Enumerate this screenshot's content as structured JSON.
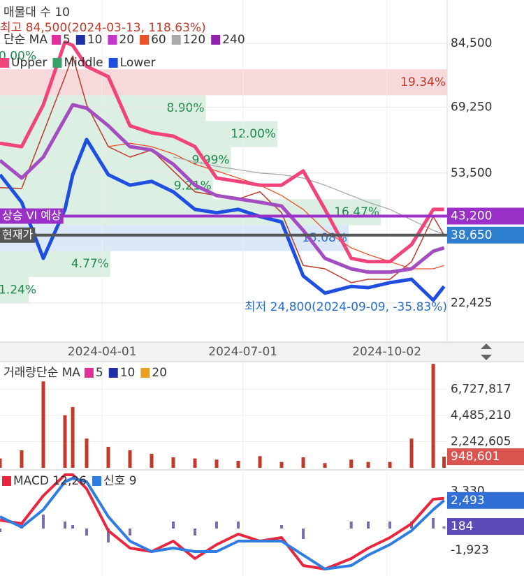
{
  "chart_data": [
    {
      "type": "line",
      "volume_profile_title": "매물대 수 10",
      "high_label": "최고 84,500(2024-03-13, 118.63%)",
      "low_label": "최저 24,800(2024-09-09, -35.83%)",
      "ma_title": "단순 MA",
      "x": [
        "2024-01-26",
        "2024-02-09",
        "2024-02-23",
        "2024-03-08",
        "2024-03-13",
        "2024-03-22",
        "2024-04-05",
        "2024-04-19",
        "2024-05-03",
        "2024-05-17",
        "2024-05-31",
        "2024-06-14",
        "2024-06-28",
        "2024-07-12",
        "2024-07-26",
        "2024-08-09",
        "2024-08-23",
        "2024-09-09",
        "2024-09-20",
        "2024-10-04",
        "2024-10-18",
        "2024-11-01",
        "2024-11-08"
      ],
      "xlim": [
        "2024-01-26",
        "2024-11-10"
      ],
      "xticks": [
        "2024-04-01",
        "2024-07-01",
        "2024-10-02"
      ],
      "ylim": [
        13081,
        94846
      ],
      "yticks": [
        {
          "value": 22425,
          "label": "22,425"
        },
        {
          "value": 53500,
          "label": "53,500"
        },
        {
          "value": 69250,
          "label": "69,250"
        },
        {
          "value": 84500,
          "label": "84,500"
        }
      ],
      "grid": true,
      "close": {
        "color": "#c0392b",
        "values": [
          50000,
          49800,
          63100,
          76500,
          81500,
          69800,
          59800,
          57300,
          59000,
          54000,
          49000,
          48100,
          47300,
          49000,
          44000,
          31400,
          30600,
          27300,
          28100,
          28100,
          32300,
          43100,
          38650
        ]
      },
      "ma_series": [
        {
          "name": "5",
          "color": "#e0309a"
        },
        {
          "name": "10",
          "color": "#1f2fa8"
        },
        {
          "name": "20",
          "color": "#c437c8"
        },
        {
          "name": "60",
          "color": "#e8532b",
          "values": [
            null,
            null,
            null,
            null,
            null,
            null,
            59800,
            60600,
            59800,
            58100,
            55600,
            54000,
            52300,
            50600,
            48100,
            44800,
            39800,
            35600,
            34000,
            32300,
            30600,
            30600,
            31400
          ]
        },
        {
          "name": "120",
          "color": "#aaaaaa",
          "values": [
            null,
            null,
            null,
            null,
            null,
            null,
            null,
            null,
            null,
            57300,
            56200,
            55100,
            54300,
            53500,
            53100,
            52300,
            50600,
            48100,
            46500,
            44800,
            42300,
            39800,
            38900
          ]
        },
        {
          "name": "240",
          "color": "#8e24aa"
        }
      ],
      "bollinger": [
        {
          "name": "Upper",
          "color": "#f0447a",
          "legend_color": "#f0447a",
          "values": [
            60600,
            59800,
            69800,
            84800,
            84000,
            79000,
            76500,
            64800,
            63100,
            62300,
            59800,
            52300,
            51500,
            50600,
            50600,
            54000,
            44800,
            33100,
            32300,
            32300,
            36400,
            44800,
            44800
          ]
        },
        {
          "name": "Middle",
          "color": "#a34dc0",
          "legend_color": "#3aa06a",
          "values": [
            56500,
            52300,
            57300,
            66500,
            69800,
            69000,
            64800,
            59800,
            59000,
            55600,
            50600,
            48100,
            47300,
            46500,
            45600,
            39800,
            33100,
            30600,
            29800,
            29800,
            30600,
            34800,
            35600
          ]
        },
        {
          "name": "Lower",
          "color": "#1f4fe0",
          "legend_color": "#1f4fe0",
          "values": [
            53100,
            46500,
            33100,
            44800,
            53100,
            61500,
            53100,
            50600,
            51500,
            49000,
            44800,
            44000,
            44800,
            43100,
            41800,
            28900,
            24800,
            26400,
            26100,
            27300,
            28100,
            23100,
            26400
          ]
        }
      ],
      "volume_profile": {
        "range": [
          22425,
          84500
        ],
        "values": [
          0.0,
          19.34,
          8.9,
          12.0,
          9.99,
          9.21,
          16.47,
          15.08,
          4.77,
          1.24
        ],
        "value_labels": [
          "0.00%",
          "19.34%",
          "8.90%",
          "12.00%",
          "9.99%",
          "9.21%",
          "16.47%",
          "15.08%",
          "4.77%",
          "1.24%"
        ],
        "colors": [
          "#dcefe3",
          "#f7d9dc",
          "#dcefe3",
          "#dcefe3",
          "#dcefe3",
          "#dcefe3",
          "#dcefe3",
          "#dbe8f7",
          "#dcefe3",
          "#dcefe3"
        ],
        "label_colors": [
          "#1e8a4e",
          "#c0392b",
          "#1e8a4e",
          "#1e8a4e",
          "#1e8a4e",
          "#1e8a4e",
          "#1e8a4e",
          "#2a6fc9",
          "#1e8a4e",
          "#1e8a4e"
        ]
      },
      "vi_line": {
        "label": "상승 VI 예상",
        "value": 43200,
        "value_label": "43,200",
        "color": "#9b30c8"
      },
      "current": {
        "label": "현재가",
        "value": 38650,
        "value_label": "38,650",
        "color": "#555555",
        "box_color": "#2f7fd0"
      }
    },
    {
      "type": "bar",
      "title": "거래량단순 MA",
      "ma_legend": [
        {
          "name": "5",
          "color": "#e0309a"
        },
        {
          "name": "10",
          "color": "#1f2fa8"
        },
        {
          "name": "20",
          "color": "#e8a020"
        }
      ],
      "color": "#c0392b",
      "values": [
        800000,
        1500000,
        7400000,
        4500000,
        5200000,
        2500000,
        1800000,
        1500000,
        1200000,
        900000,
        800000,
        700000,
        600000,
        1000000,
        500000,
        900000,
        400000,
        700000,
        500000,
        500000,
        2500000,
        8900000,
        948601
      ],
      "ylim": [
        0,
        9090000
      ],
      "yticks": [
        {
          "value": 2242605,
          "label": "2,242,605"
        },
        {
          "value": 4485210,
          "label": "4,485,210"
        },
        {
          "value": 6727817,
          "label": "6,727,817"
        }
      ],
      "current": {
        "value": 948601,
        "label": "948,601",
        "color": "#d9534f"
      }
    },
    {
      "type": "line",
      "series": [
        {
          "name": "MACD 12,26",
          "color": "#e8273f",
          "values": [
            744,
            434,
            2914,
            4774,
            4774,
            3534,
            -186,
            -1736,
            -2046,
            -1116,
            -2666,
            -1426,
            -496,
            -1116,
            -806,
            -3286,
            -3596,
            -2666,
            -1736,
            -806,
            434,
            2604,
            2677
          ]
        },
        {
          "name": "신호 9",
          "color": "#2f7de1",
          "values": [
            1054,
            124,
            1674,
            4154,
            4464,
            4154,
            1054,
            -1116,
            -2046,
            -1736,
            -2046,
            -2046,
            -1116,
            -1116,
            -1116,
            -2356,
            -3596,
            -3286,
            -2356,
            -1426,
            -186,
            1674,
            2493
          ]
        }
      ],
      "histogram": {
        "color": "#7d6bb0",
        "values": [
          -310,
          310,
          1240,
          620,
          310,
          -620,
          -1240,
          -620,
          0,
          620,
          -620,
          620,
          620,
          0,
          310,
          -930,
          0,
          620,
          620,
          620,
          620,
          930,
          184
        ]
      },
      "ylim": [
        -4216,
        5022
      ],
      "yticks": [
        {
          "value": -1923,
          "label": "-1,923"
        },
        {
          "value": 3330,
          "label": "3,330"
        }
      ],
      "current": [
        {
          "value": 2493,
          "label": "2,493",
          "color": "#2f6fd6"
        },
        {
          "value": 184,
          "label": "184",
          "color": "#5b4bb7"
        }
      ]
    }
  ]
}
